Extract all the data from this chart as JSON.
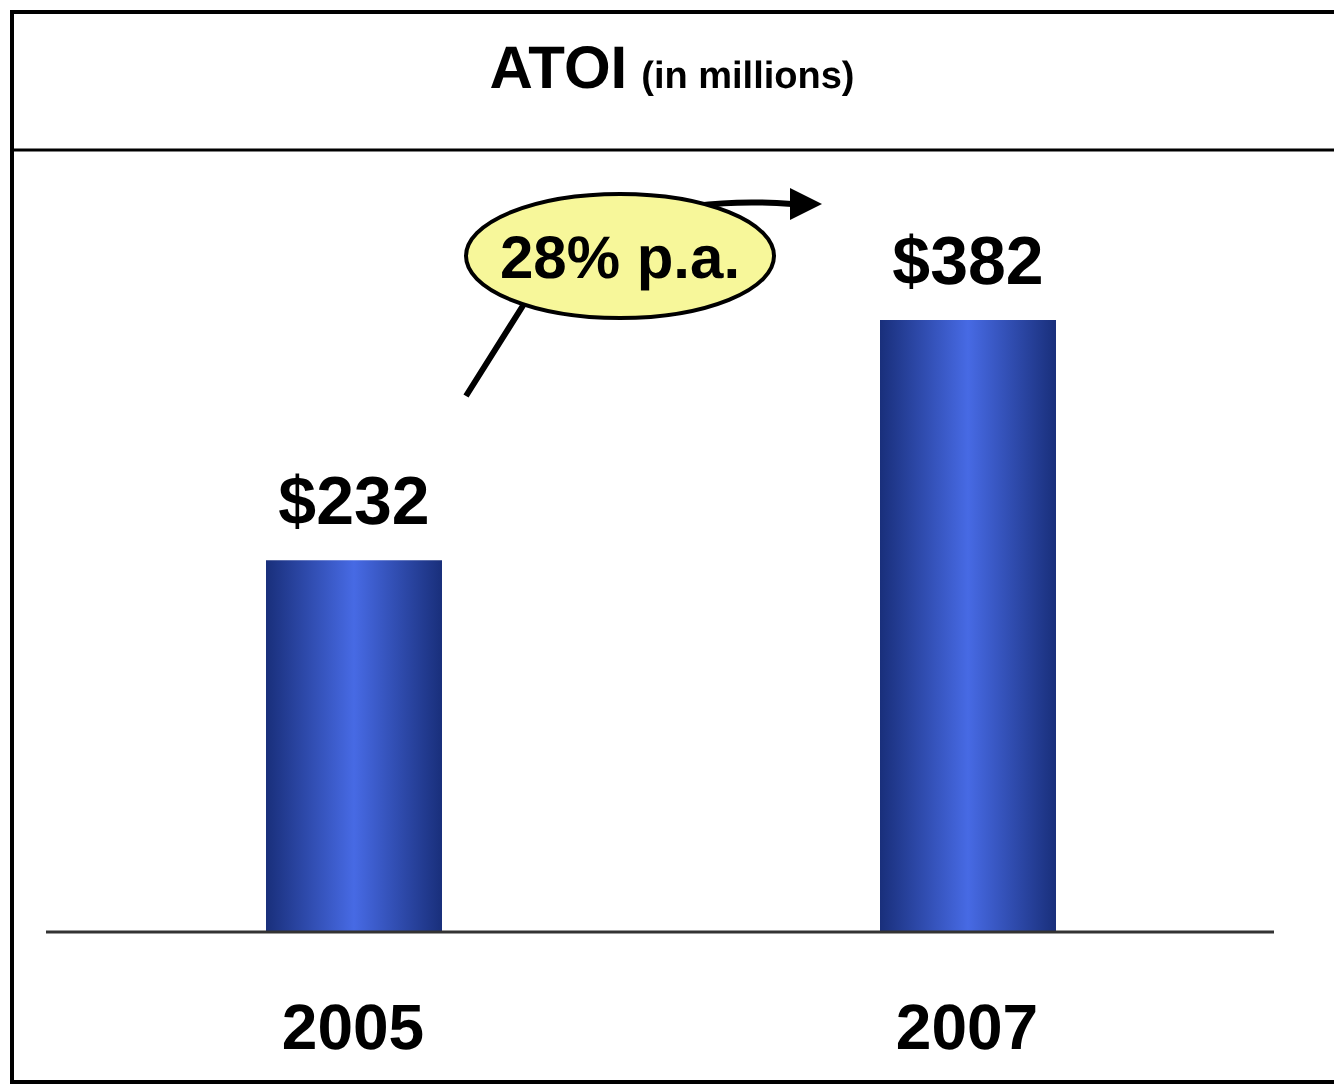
{
  "chart_data": {
    "type": "bar",
    "title": "ATOI",
    "subtitle": "(in millions)",
    "categories": [
      "2005",
      "2007"
    ],
    "values": [
      232,
      382
    ],
    "value_labels": [
      "$232",
      "$382"
    ],
    "color": "#2e56e0",
    "annotations": [
      "28% p.a."
    ]
  }
}
